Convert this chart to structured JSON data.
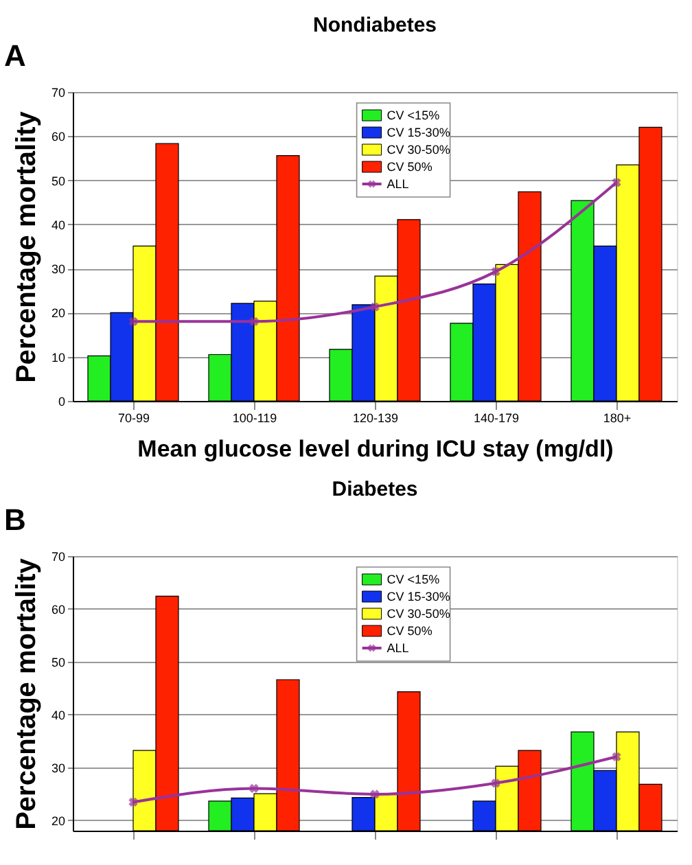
{
  "chart_data": [
    {
      "type": "bar",
      "title": "Nondiabetes",
      "xlabel": "Mean glucose level during ICU stay (mg/dl)",
      "ylabel": "Percentage mortality",
      "annotations": [
        "A"
      ],
      "categories": [
        "70-99",
        "100-119",
        "120-139",
        "140-179",
        "180+"
      ],
      "ylim": [
        0,
        70
      ],
      "yticks": [
        0,
        10,
        20,
        30,
        40,
        50,
        60,
        70
      ],
      "grid": "y",
      "legend": "top",
      "series": [
        {
          "name": "CV <15%",
          "color": "#22ee22",
          "values": [
            10.2,
            10.5,
            11.7,
            17.6,
            45.4
          ]
        },
        {
          "name": "CV 15-30%",
          "color": "#1133ee",
          "values": [
            20.0,
            22.1,
            21.8,
            26.5,
            35.1
          ]
        },
        {
          "name": "CV 30-50%",
          "color": "#ffff22",
          "values": [
            35.1,
            22.6,
            28.3,
            30.9,
            53.5
          ]
        },
        {
          "name": "CV 50%",
          "color": "#ff2200",
          "values": [
            58.3,
            55.6,
            41.1,
            47.4,
            62.0
          ]
        },
        {
          "name": "ALL",
          "color": "#993399",
          "type": "line",
          "marker": "cross",
          "values": [
            18.0,
            18.0,
            21.3,
            29.3,
            49.5
          ]
        }
      ]
    },
    {
      "type": "bar",
      "title": "Diabetes",
      "ylabel": "Percentage mortality",
      "annotations": [
        "B"
      ],
      "categories": [
        null,
        null,
        null,
        null,
        null
      ],
      "tick_labels": "y",
      "ylim": [
        18,
        70
      ],
      "yticks": [
        20,
        30,
        40,
        50,
        60,
        70
      ],
      "grid": "y",
      "legend": "top",
      "series": [
        {
          "name": "CV <15%",
          "color": "#22ee22",
          "values": [
            null,
            23.6,
            null,
            null,
            36.7
          ]
        },
        {
          "name": "CV 15-30%",
          "color": "#1133ee",
          "values": [
            null,
            24.2,
            24.3,
            23.6,
            29.4
          ]
        },
        {
          "name": "CV 30-50%",
          "color": "#ffff22",
          "values": [
            33.2,
            25.0,
            25.0,
            30.2,
            36.7
          ]
        },
        {
          "name": "CV 50%",
          "color": "#ff2200",
          "values": [
            62.4,
            46.6,
            44.3,
            33.2,
            26.8
          ]
        },
        {
          "name": "ALL",
          "color": "#993399",
          "type": "line",
          "marker": "cross",
          "values": [
            23.4,
            26.0,
            24.9,
            27.0,
            32.0
          ]
        }
      ]
    }
  ]
}
